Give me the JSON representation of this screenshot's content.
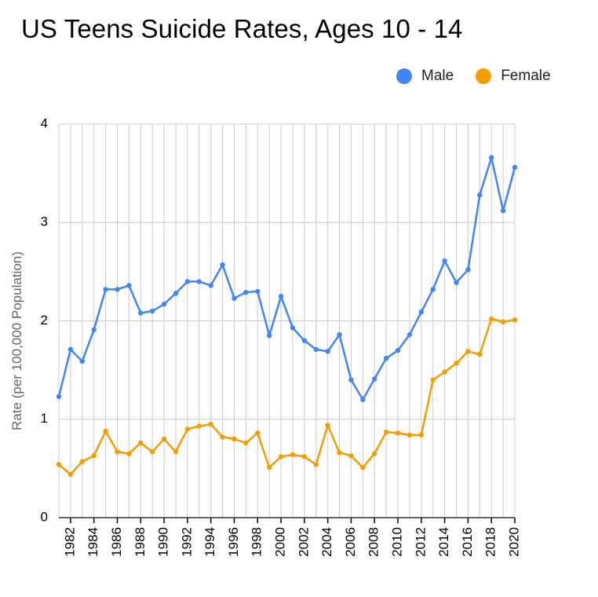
{
  "chart_data": {
    "type": "line",
    "title": "US Teens Suicide Rates, Ages 10 - 14",
    "xlabel": "",
    "ylabel": "Rate (per 100,000 Population)",
    "ylim": [
      0,
      4
    ],
    "yticks": [
      0,
      1,
      2,
      3,
      4
    ],
    "xlim": [
      1981,
      2020
    ],
    "xticks": [
      1982,
      1984,
      1986,
      1988,
      1990,
      1992,
      1994,
      1996,
      1998,
      2000,
      2002,
      2004,
      2006,
      2008,
      2010,
      2012,
      2014,
      2016,
      2018,
      2020
    ],
    "grid": true,
    "legend_position": "top-right",
    "x": [
      1981,
      1982,
      1983,
      1984,
      1985,
      1986,
      1987,
      1988,
      1989,
      1990,
      1991,
      1992,
      1993,
      1994,
      1995,
      1996,
      1997,
      1998,
      1999,
      2000,
      2001,
      2002,
      2003,
      2004,
      2005,
      2006,
      2007,
      2008,
      2009,
      2010,
      2011,
      2012,
      2013,
      2014,
      2015,
      2016,
      2017,
      2018,
      2019,
      2020
    ],
    "series": [
      {
        "name": "Male",
        "color": "#4285f4",
        "values": [
          1.23,
          1.71,
          1.59,
          1.91,
          2.32,
          2.32,
          2.36,
          2.08,
          2.1,
          2.17,
          2.28,
          2.4,
          2.4,
          2.36,
          2.57,
          2.23,
          2.29,
          2.3,
          1.85,
          2.25,
          1.93,
          1.8,
          1.71,
          1.69,
          1.86,
          1.4,
          1.2,
          1.41,
          1.62,
          1.7,
          1.86,
          2.09,
          2.32,
          2.61,
          2.39,
          2.52,
          3.28,
          3.66,
          3.12,
          3.56
        ]
      },
      {
        "name": "Female",
        "color": "#f59c00",
        "values": [
          0.54,
          0.44,
          0.57,
          0.63,
          0.88,
          0.67,
          0.65,
          0.76,
          0.67,
          0.8,
          0.67,
          0.9,
          0.93,
          0.95,
          0.82,
          0.8,
          0.76,
          0.86,
          0.51,
          0.62,
          0.64,
          0.62,
          0.54,
          0.94,
          0.66,
          0.63,
          0.51,
          0.65,
          0.87,
          0.86,
          0.84,
          0.84,
          1.4,
          1.48,
          1.57,
          1.69,
          1.66,
          2.02,
          1.99,
          2.01
        ]
      }
    ]
  }
}
